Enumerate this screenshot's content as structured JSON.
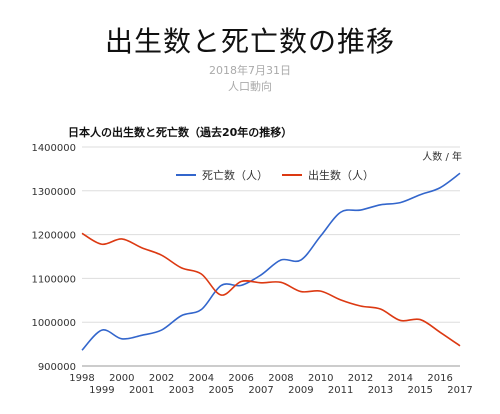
{
  "header": {
    "title": "出生数と死亡数の推移",
    "date": "2018年7月31日",
    "source": "人口動向"
  },
  "chart_data": {
    "type": "line",
    "title": "日本人の出生数と死亡数（過去20年の推移）",
    "unit_label": "人数 / 年",
    "x": [
      1998,
      1999,
      2000,
      2001,
      2002,
      2003,
      2004,
      2005,
      2006,
      2007,
      2008,
      2009,
      2010,
      2011,
      2012,
      2013,
      2014,
      2015,
      2016,
      2017
    ],
    "x_tick_labels": [
      "1998",
      "1999",
      "2000",
      "2001",
      "2002",
      "2003",
      "2004",
      "2005",
      "2006",
      "2007",
      "2008",
      "2009",
      "2010",
      "2011",
      "2012",
      "2013",
      "2014",
      "2015",
      "2016",
      "2017"
    ],
    "ylim": [
      900000,
      1400000
    ],
    "y_ticks": [
      900000,
      1000000,
      1100000,
      1200000,
      1300000,
      1400000
    ],
    "y_tick_labels": [
      "900000",
      "1000000",
      "1100000",
      "1200000",
      "1300000",
      "1400000"
    ],
    "grid": true,
    "legend_position": "top-center",
    "series": [
      {
        "name": "死亡数（人）",
        "color": "#3366cc",
        "values": [
          936000,
          982000,
          962000,
          970000,
          982000,
          1015000,
          1029000,
          1084000,
          1084000,
          1108000,
          1142000,
          1142000,
          1197000,
          1251000,
          1256000,
          1268000,
          1273000,
          1291000,
          1307000,
          1340000
        ]
      },
      {
        "name": "出生数（人）",
        "color": "#dc3912",
        "values": [
          1203000,
          1178000,
          1190000,
          1170000,
          1153000,
          1124000,
          1110000,
          1062000,
          1093000,
          1090000,
          1091000,
          1070000,
          1071000,
          1051000,
          1037000,
          1030000,
          1004000,
          1006000,
          977000,
          946000
        ]
      }
    ]
  }
}
